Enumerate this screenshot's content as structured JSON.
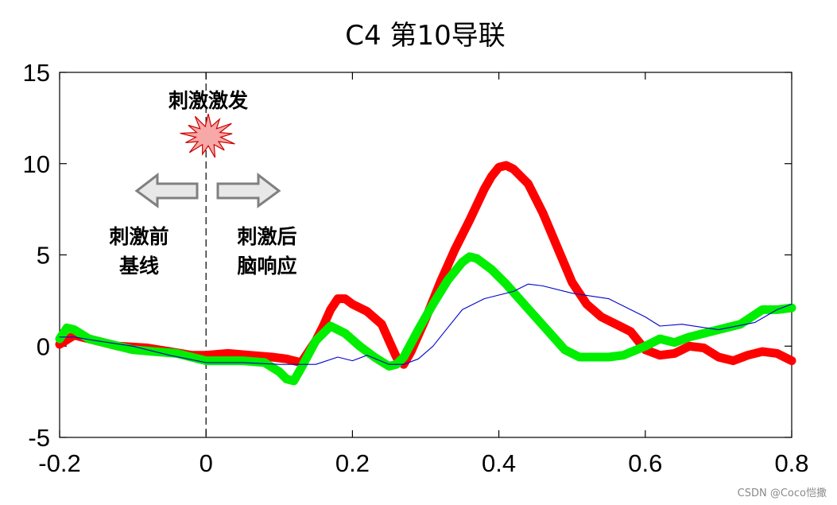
{
  "chart_data": {
    "type": "line",
    "title": "C4 第10导联",
    "xlabel": "",
    "ylabel": "",
    "xlim": [
      -0.2,
      0.8
    ],
    "ylim": [
      -5,
      15
    ],
    "xticks": [
      "-0.2",
      "0",
      "0.2",
      "0.4",
      "0.6",
      "0.8"
    ],
    "yticks": [
      "15",
      "10",
      "5",
      "0",
      "-5"
    ],
    "grid": false,
    "series": [
      {
        "color": "#ff0000",
        "style": "thick",
        "x": [
          -0.2,
          -0.18,
          -0.15,
          -0.12,
          -0.08,
          -0.05,
          -0.02,
          0.0,
          0.03,
          0.06,
          0.09,
          0.11,
          0.13,
          0.15,
          0.16,
          0.17,
          0.18,
          0.19,
          0.2,
          0.22,
          0.24,
          0.25,
          0.26,
          0.27,
          0.28,
          0.3,
          0.32,
          0.34,
          0.36,
          0.38,
          0.39,
          0.4,
          0.41,
          0.42,
          0.44,
          0.46,
          0.48,
          0.5,
          0.52,
          0.54,
          0.56,
          0.58,
          0.6,
          0.62,
          0.64,
          0.66,
          0.68,
          0.7,
          0.72,
          0.74,
          0.76,
          0.78,
          0.8
        ],
        "y": [
          0.1,
          0.6,
          0.3,
          0.0,
          -0.1,
          -0.3,
          -0.5,
          -0.5,
          -0.4,
          -0.5,
          -0.6,
          -0.7,
          -0.9,
          0.3,
          1.1,
          2.0,
          2.6,
          2.6,
          2.3,
          1.9,
          1.2,
          0.3,
          -0.6,
          -1.0,
          -0.3,
          1.5,
          3.5,
          5.3,
          6.9,
          8.6,
          9.3,
          9.8,
          9.9,
          9.7,
          8.9,
          7.3,
          5.4,
          3.5,
          2.3,
          1.6,
          1.2,
          0.8,
          -0.2,
          -0.5,
          -0.4,
          0.0,
          -0.1,
          -0.6,
          -0.8,
          -0.5,
          -0.3,
          -0.4,
          -0.8
        ]
      },
      {
        "color": "#00ee00",
        "style": "thick",
        "x": [
          -0.2,
          -0.19,
          -0.18,
          -0.16,
          -0.13,
          -0.1,
          -0.07,
          -0.04,
          -0.02,
          0.0,
          0.02,
          0.05,
          0.08,
          0.1,
          0.11,
          0.12,
          0.13,
          0.15,
          0.17,
          0.19,
          0.21,
          0.23,
          0.25,
          0.26,
          0.27,
          0.29,
          0.31,
          0.33,
          0.35,
          0.36,
          0.37,
          0.39,
          0.41,
          0.43,
          0.45,
          0.47,
          0.49,
          0.51,
          0.53,
          0.55,
          0.57,
          0.6,
          0.62,
          0.64,
          0.66,
          0.7,
          0.73,
          0.76,
          0.78,
          0.8
        ],
        "y": [
          0.4,
          1.0,
          0.9,
          0.4,
          0.1,
          -0.2,
          -0.3,
          -0.4,
          -0.6,
          -0.8,
          -0.8,
          -0.8,
          -0.9,
          -1.4,
          -1.8,
          -1.9,
          -1.2,
          0.3,
          1.1,
          0.7,
          0.0,
          -0.6,
          -1.1,
          -1.0,
          -0.6,
          0.9,
          2.3,
          3.6,
          4.6,
          4.9,
          4.8,
          4.2,
          3.4,
          2.5,
          1.6,
          0.7,
          -0.2,
          -0.6,
          -0.6,
          -0.6,
          -0.5,
          0.0,
          0.4,
          0.2,
          0.5,
          0.9,
          1.2,
          2.0,
          2.0,
          2.1
        ]
      },
      {
        "color": "#0000cc",
        "style": "thin",
        "x": [
          -0.2,
          -0.18,
          -0.15,
          -0.1,
          -0.05,
          0.0,
          0.05,
          0.1,
          0.15,
          0.18,
          0.2,
          0.22,
          0.25,
          0.27,
          0.29,
          0.31,
          0.33,
          0.35,
          0.38,
          0.4,
          0.42,
          0.44,
          0.46,
          0.5,
          0.55,
          0.58,
          0.6,
          0.62,
          0.65,
          0.7,
          0.75,
          0.78,
          0.8
        ],
        "y": [
          0.5,
          0.5,
          0.3,
          0.0,
          -0.5,
          -0.9,
          -0.9,
          -1.0,
          -1.0,
          -0.6,
          -0.8,
          -0.5,
          -1.0,
          -1.0,
          -0.7,
          0.0,
          1.0,
          2.0,
          2.6,
          2.8,
          3.0,
          3.4,
          3.3,
          2.9,
          2.6,
          2.0,
          1.6,
          1.1,
          1.2,
          0.9,
          1.3,
          2.0,
          2.3
        ]
      }
    ],
    "annotations": {
      "stim_label": "刺激激发",
      "pre_label_1": "刺激前",
      "pre_label_2": "基线",
      "post_label_1": "刺激后",
      "post_label_2": "脑响应"
    },
    "colors": {
      "burst_fill": "#f7a8a8",
      "burst_stroke": "#cc0000",
      "arrow_fill": "#e8e8e8",
      "arrow_stroke": "#808080"
    }
  },
  "watermark": "CSDN @Coco恺撒"
}
